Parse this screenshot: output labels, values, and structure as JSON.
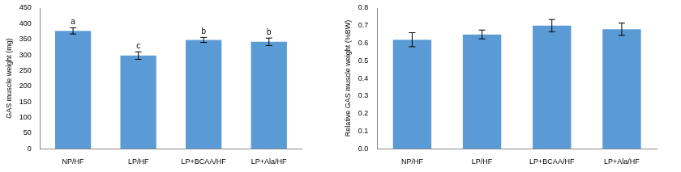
{
  "chart_data": [
    {
      "type": "bar",
      "y_label": "GAS muscle weight (mg)",
      "categories": [
        "NP/HF",
        "LP/HF",
        "LP+BCAA/HF",
        "LP+Ala/HF"
      ],
      "values": [
        377,
        298,
        348,
        342
      ],
      "errors": [
        10,
        12,
        8,
        12
      ],
      "annotations": [
        {
          "x": "NP/HF",
          "text": "a"
        },
        {
          "x": "LP/HF",
          "text": "c"
        },
        {
          "x": "LP+BCAA/HF",
          "text": "b"
        },
        {
          "x": "LP+Ala/HF",
          "text": "b"
        }
      ],
      "color": "#5b9bd5",
      "ylim": [
        0,
        450
      ],
      "yticks": [
        0,
        50,
        100,
        150,
        200,
        250,
        300,
        350,
        400,
        450
      ],
      "grid": false
    },
    {
      "type": "bar",
      "y_label": "Relative GAS muscle weight (%BW)",
      "categories": [
        "NP/HF",
        "LP/HF",
        "LP+BCAA/HF",
        "LP+Ala/HF"
      ],
      "values": [
        0.62,
        0.65,
        0.7,
        0.68
      ],
      "errors": [
        0.04,
        0.025,
        0.035,
        0.035
      ],
      "color": "#5b9bd5",
      "ylim": [
        0,
        0.8
      ],
      "yticks": [
        {
          "value": 0,
          "label": "0.0"
        },
        0.1,
        0.2,
        0.3,
        0.4,
        0.5,
        0.6,
        0.7,
        0.8
      ],
      "grid": false
    }
  ]
}
